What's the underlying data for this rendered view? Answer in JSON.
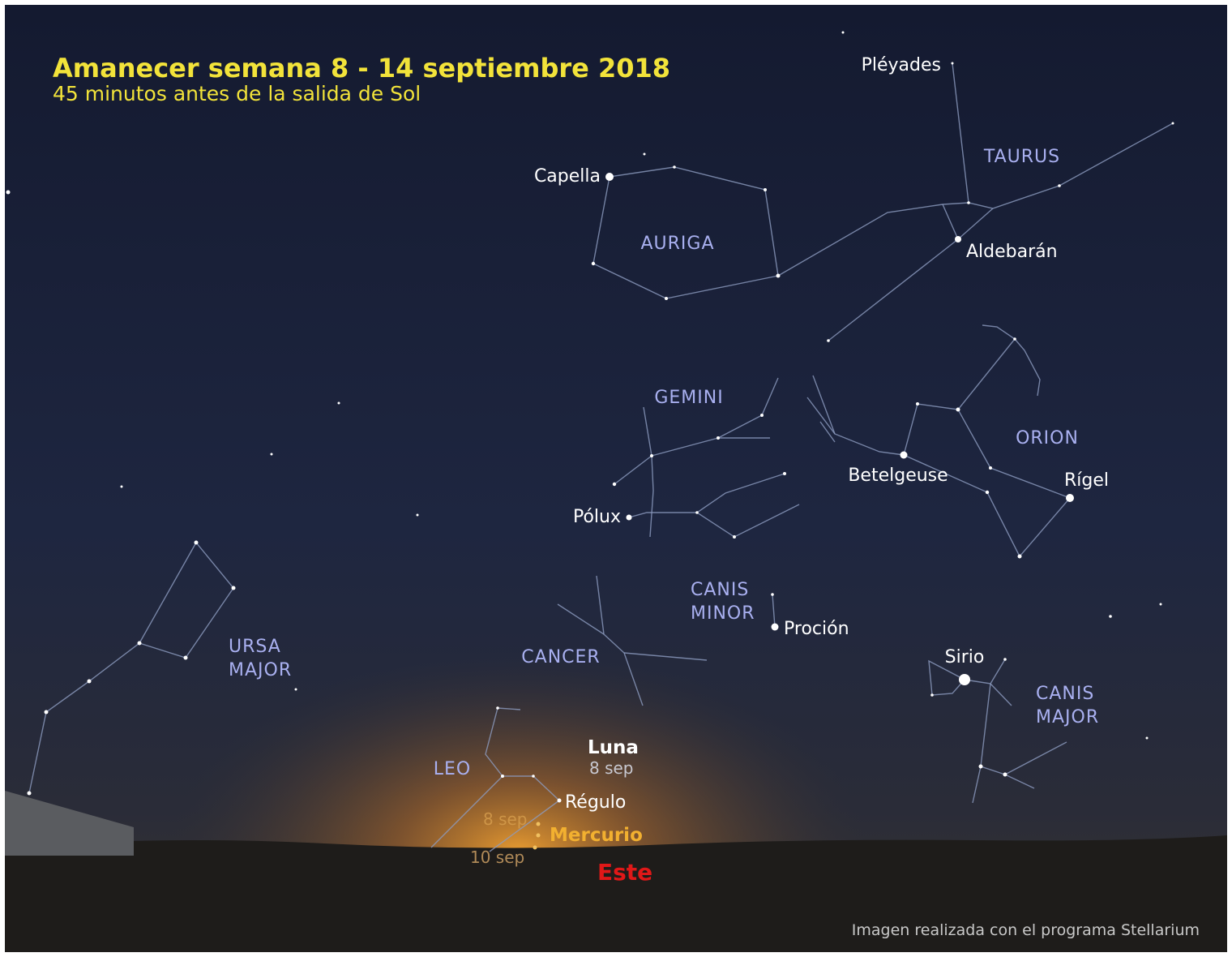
{
  "header": {
    "title": "Amanecer semana 8 - 14 septiembre 2018",
    "subtitle": "45 minutos antes de la salida de Sol"
  },
  "constellations": {
    "auriga": [
      "AURIGA"
    ],
    "taurus": [
      "TAURUS"
    ],
    "gemini": [
      "GEMINI"
    ],
    "orion": [
      "ORION"
    ],
    "canis_minor": [
      "CANIS",
      "MINOR"
    ],
    "cancer": [
      "CANCER"
    ],
    "leo": [
      "LEO"
    ],
    "ursa_major": [
      "URSA",
      "MAJOR"
    ],
    "canis_major": [
      "CANIS",
      "MAJOR"
    ]
  },
  "stars": {
    "capella": "Capella",
    "pleyades": "Pléyades",
    "aldebaran": "Aldebarán",
    "betelgeuse": "Betelgeuse",
    "rigel": "Rígel",
    "polux": "Pólux",
    "procion": "Proción",
    "sirio": "Sirio",
    "regulo": "Régulo"
  },
  "moon": {
    "name": "Luna",
    "date": "8 sep"
  },
  "mercury": {
    "name": "Mercurio",
    "date_start": "8 sep",
    "date_end": "10 sep"
  },
  "direction": "Este",
  "credit": "Imagen realizada con el programa Stellarium"
}
